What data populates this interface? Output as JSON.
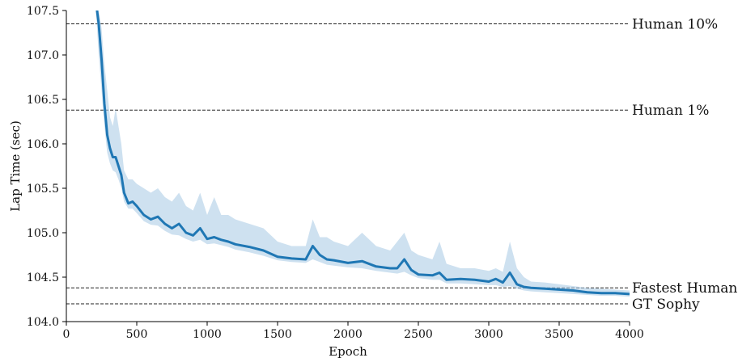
{
  "chart_data": {
    "type": "line",
    "title": "",
    "xlabel": "Epoch",
    "ylabel": "Lap Time (sec)",
    "xlim": [
      0,
      4000
    ],
    "ylim": [
      104.0,
      107.5
    ],
    "xticks": [
      "0",
      "500",
      "1000",
      "1500",
      "2000",
      "2500",
      "3000",
      "3500",
      "4000"
    ],
    "yticks": [
      "104.0",
      "104.5",
      "105.0",
      "105.5",
      "106.0",
      "106.5",
      "107.0",
      "107.5"
    ],
    "grid": false,
    "colors": {
      "line": "#1f77b4",
      "band": "#aecde6",
      "reference": "#222222"
    },
    "reference_lines": [
      {
        "label": "Human 10%",
        "y": 107.35
      },
      {
        "label": "Human 1%",
        "y": 106.38
      },
      {
        "label": "Fastest Human",
        "y": 104.38
      },
      {
        "label": "GT Sophy",
        "y": 104.2
      }
    ],
    "series": [
      {
        "x": [
          210,
          230,
          250,
          270,
          290,
          310,
          330,
          350,
          370,
          390,
          410,
          440,
          470,
          500,
          550,
          600,
          650,
          700,
          750,
          800,
          850,
          900,
          950,
          1000,
          1050,
          1100,
          1150,
          1200,
          1300,
          1400,
          1500,
          1600,
          1700,
          1750,
          1800,
          1850,
          1900,
          2000,
          2100,
          2200,
          2300,
          2350,
          2400,
          2450,
          2500,
          2600,
          2650,
          2700,
          2800,
          2900,
          3000,
          3050,
          3100,
          3150,
          3200,
          3250,
          3300,
          3400,
          3500,
          3600,
          3700,
          3800,
          3900,
          4000
        ],
        "y": [
          107.6,
          107.35,
          106.95,
          106.45,
          106.1,
          105.95,
          105.85,
          105.85,
          105.75,
          105.65,
          105.45,
          105.33,
          105.35,
          105.3,
          105.2,
          105.15,
          105.18,
          105.1,
          105.05,
          105.1,
          105.0,
          104.97,
          105.05,
          104.93,
          104.95,
          104.92,
          104.9,
          104.87,
          104.84,
          104.8,
          104.73,
          104.71,
          104.7,
          104.85,
          104.75,
          104.7,
          104.69,
          104.66,
          104.68,
          104.62,
          104.6,
          104.6,
          104.7,
          104.58,
          104.53,
          104.52,
          104.55,
          104.47,
          104.48,
          104.47,
          104.45,
          104.48,
          104.44,
          104.55,
          104.42,
          104.39,
          104.38,
          104.37,
          104.36,
          104.35,
          104.33,
          104.32,
          104.32,
          104.31
        ],
        "band_low": [
          107.6,
          107.0,
          106.6,
          106.2,
          105.9,
          105.78,
          105.7,
          105.68,
          105.6,
          105.5,
          105.35,
          105.27,
          105.27,
          105.22,
          105.13,
          105.09,
          105.08,
          105.02,
          104.98,
          104.97,
          104.93,
          104.9,
          104.92,
          104.87,
          104.88,
          104.86,
          104.84,
          104.81,
          104.78,
          104.74,
          104.69,
          104.67,
          104.66,
          104.7,
          104.67,
          104.64,
          104.63,
          104.61,
          104.6,
          104.57,
          104.55,
          104.54,
          104.56,
          104.52,
          104.49,
          104.47,
          104.47,
          104.43,
          104.43,
          104.42,
          104.41,
          104.41,
          104.39,
          104.4,
          104.37,
          104.35,
          104.34,
          104.33,
          104.32,
          104.31,
          104.3,
          104.29,
          104.29,
          104.28
        ],
        "band_high": [
          107.6,
          107.6,
          107.3,
          106.9,
          106.6,
          106.3,
          106.2,
          106.4,
          106.2,
          106.0,
          105.7,
          105.6,
          105.6,
          105.55,
          105.5,
          105.45,
          105.5,
          105.4,
          105.35,
          105.45,
          105.3,
          105.25,
          105.45,
          105.2,
          105.4,
          105.2,
          105.2,
          105.15,
          105.1,
          105.05,
          104.9,
          104.85,
          104.85,
          105.15,
          104.95,
          104.95,
          104.9,
          104.85,
          105.0,
          104.85,
          104.8,
          104.9,
          105.0,
          104.8,
          104.75,
          104.7,
          104.9,
          104.65,
          104.6,
          104.6,
          104.57,
          104.6,
          104.56,
          104.9,
          104.6,
          104.5,
          104.45,
          104.44,
          104.42,
          104.4,
          104.38,
          104.37,
          104.36,
          104.35
        ]
      }
    ]
  }
}
